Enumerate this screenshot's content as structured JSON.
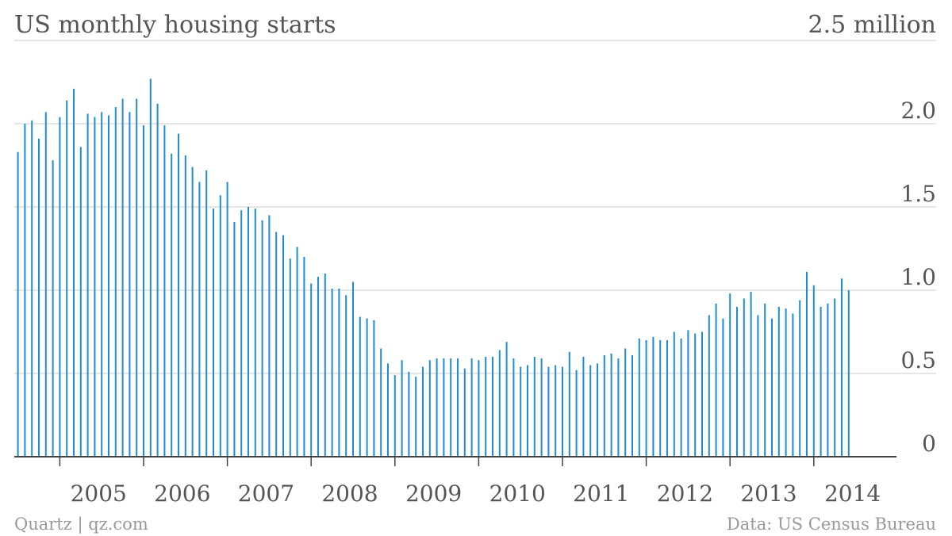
{
  "chart_data": {
    "type": "bar",
    "title": "US monthly housing starts",
    "unit_label": "2.5 million",
    "ylim": [
      0,
      2.5
    ],
    "y_ticks": [
      {
        "value": 0,
        "label": "0"
      },
      {
        "value": 0.5,
        "label": "0.5"
      },
      {
        "value": 1.0,
        "label": "1.0"
      },
      {
        "value": 1.5,
        "label": "1.5"
      },
      {
        "value": 2.0,
        "label": "2.0"
      }
    ],
    "x_ticks": [
      "2005",
      "2006",
      "2007",
      "2008",
      "2009",
      "2010",
      "2011",
      "2012",
      "2013",
      "2014"
    ],
    "grid": true,
    "bar_color": "#1f8dd6",
    "start_month": "2004-07",
    "values": [
      1.83,
      2.0,
      2.02,
      1.91,
      2.07,
      1.78,
      2.04,
      2.14,
      2.21,
      1.86,
      2.06,
      2.04,
      2.07,
      2.05,
      2.1,
      2.15,
      2.07,
      2.15,
      1.99,
      2.27,
      2.12,
      1.99,
      1.82,
      1.94,
      1.81,
      1.74,
      1.65,
      1.72,
      1.49,
      1.57,
      1.65,
      1.41,
      1.48,
      1.5,
      1.49,
      1.42,
      1.45,
      1.35,
      1.33,
      1.19,
      1.26,
      1.2,
      1.04,
      1.08,
      1.1,
      1.01,
      1.01,
      0.97,
      1.05,
      0.84,
      0.83,
      0.82,
      0.65,
      0.56,
      0.49,
      0.58,
      0.51,
      0.48,
      0.54,
      0.58,
      0.59,
      0.59,
      0.59,
      0.59,
      0.53,
      0.59,
      0.58,
      0.6,
      0.6,
      0.64,
      0.69,
      0.59,
      0.54,
      0.55,
      0.6,
      0.59,
      0.54,
      0.55,
      0.54,
      0.63,
      0.52,
      0.6,
      0.55,
      0.56,
      0.61,
      0.62,
      0.59,
      0.65,
      0.61,
      0.71,
      0.7,
      0.72,
      0.7,
      0.7,
      0.75,
      0.71,
      0.76,
      0.74,
      0.75,
      0.85,
      0.92,
      0.83,
      0.98,
      0.9,
      0.95,
      0.99,
      0.85,
      0.92,
      0.83,
      0.9,
      0.89,
      0.86,
      0.94,
      1.11,
      1.03,
      0.9,
      0.92,
      0.95,
      1.07,
      1.0
    ]
  },
  "footer": {
    "source_left": "Quartz | qz.com",
    "source_right": "Data: US Census Bureau"
  }
}
